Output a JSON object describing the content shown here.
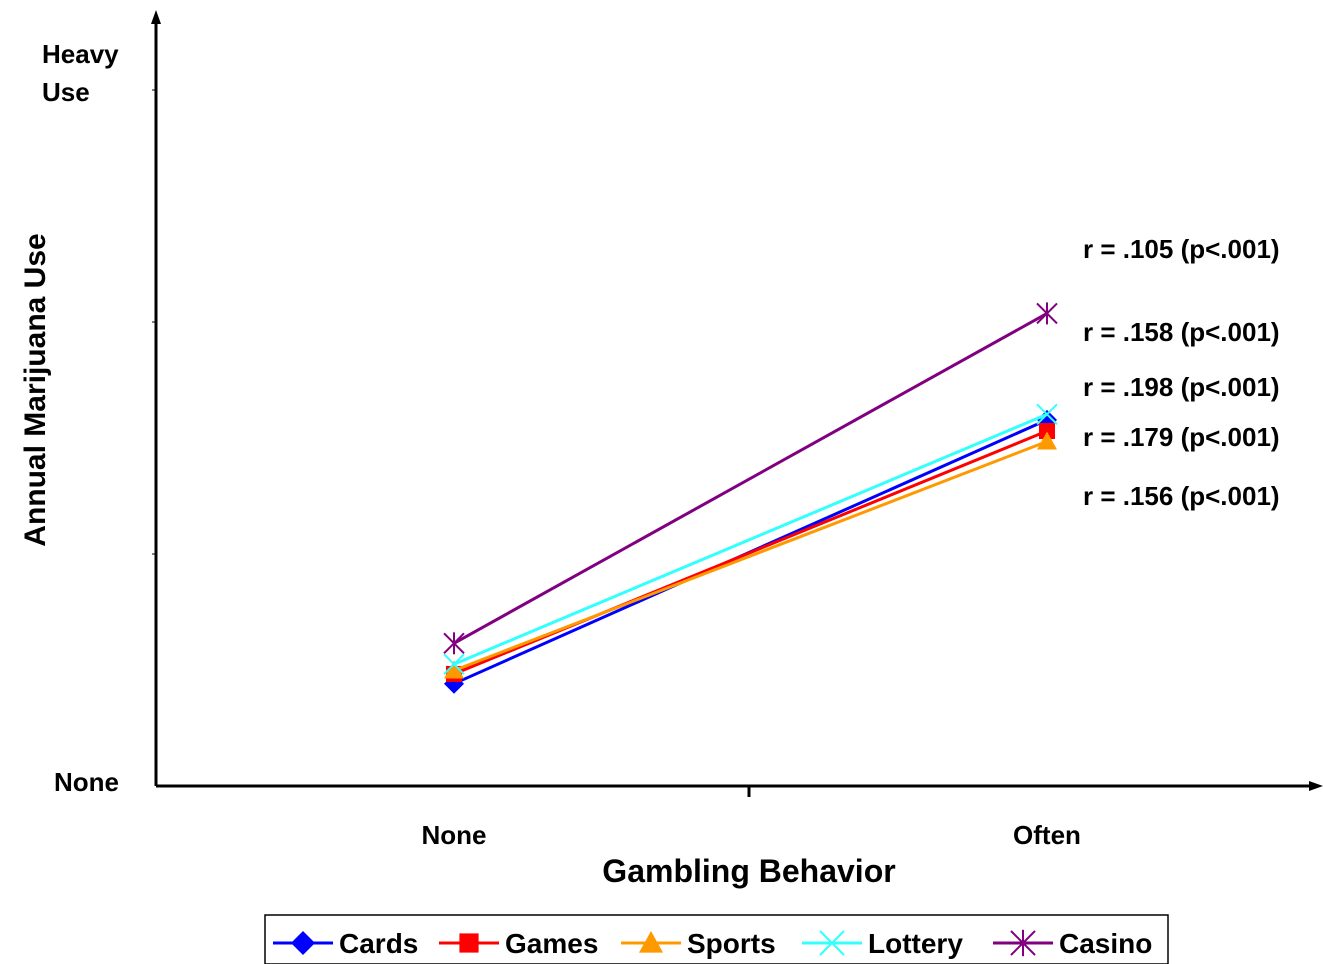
{
  "chart_data": {
    "type": "line",
    "xlabel": "Gambling Behavior",
    "ylabel": "Annual Marijuana Use",
    "categories": [
      "None",
      "Often"
    ],
    "y_tick_labels": {
      "min_line1": "None",
      "max_line1": "Heavy",
      "max_line2": "Use"
    },
    "ylim": [
      0,
      10
    ],
    "series": [
      {
        "name": "Cards",
        "values": [
          1.47,
          5.26
        ],
        "color": "#0000ff",
        "marker": "diamond"
      },
      {
        "name": "Games",
        "values": [
          1.61,
          5.1
        ],
        "color": "#ff0000",
        "marker": "square"
      },
      {
        "name": "Sports",
        "values": [
          1.66,
          4.95
        ],
        "color": "#ff9900",
        "marker": "triangle"
      },
      {
        "name": "Lottery",
        "values": [
          1.75,
          5.34
        ],
        "color": "#33ffff",
        "marker": "x"
      },
      {
        "name": "Casino",
        "values": [
          2.05,
          6.79
        ],
        "color": "#800080",
        "marker": "star"
      }
    ],
    "annotations": [
      "r = .105 (p<.001)",
      "r = .158 (p<.001)",
      "r = .198 (p<.001)",
      "r = .179 (p<.001)",
      "r = .156 (p<.001)"
    ],
    "legend_position": "bottom",
    "grid": false
  }
}
